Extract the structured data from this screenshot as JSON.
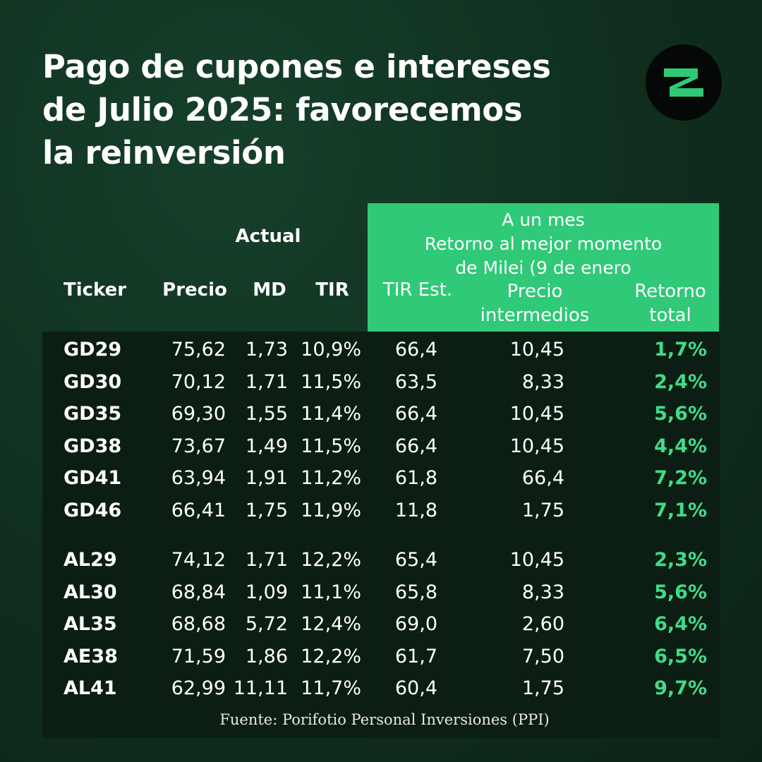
{
  "header": {
    "title_lines": [
      "Pago de cupones e intereses",
      "de Julio 2025: favorecemos",
      "la reinversión"
    ]
  },
  "table": {
    "group_left": "Actual",
    "group_right_lines": [
      "A un mes",
      "Retorno al mejor momento",
      "de Milei (9 de enero"
    ],
    "columns": [
      [
        "Ticker"
      ],
      [
        "Precio"
      ],
      [
        "MD"
      ],
      [
        "TIR"
      ],
      [
        "TIR Est."
      ],
      [
        "Precio",
        "intermedios"
      ],
      [
        "Retorno",
        "total"
      ]
    ],
    "sections": [
      {
        "rows": [
          [
            "GD29",
            "75,62",
            "1,73",
            "10,9%",
            "66,4",
            "10,45",
            "1,7%"
          ],
          [
            "GD30",
            "70,12",
            "1,71",
            "11,5%",
            "63,5",
            "8,33",
            "2,4%"
          ],
          [
            "GD35",
            "69,30",
            "1,55",
            "11,4%",
            "66,4",
            "10,45",
            "5,6%"
          ],
          [
            "GD38",
            "73,67",
            "1,49",
            "11,5%",
            "66,4",
            "10,45",
            "4,4%"
          ],
          [
            "GD41",
            "63,94",
            "1,91",
            "11,2%",
            "61,8",
            "66,4",
            "7,2%"
          ],
          [
            "GD46",
            "66,41",
            "1,75",
            "11,9%",
            "11,8",
            "1,75",
            "7,1%"
          ]
        ]
      },
      {
        "rows": [
          [
            "AL29",
            "74,12",
            "1,71",
            "12,2%",
            "65,4",
            "10,45",
            "2,3%"
          ],
          [
            "AL30",
            "68,84",
            "1,09",
            "11,1%",
            "65,8",
            "8,33",
            "5,6%"
          ],
          [
            "AL35",
            "68,68",
            "5,72",
            "12,4%",
            "69,0",
            "2,60",
            "6,4%"
          ],
          [
            "AE38",
            "71,59",
            "1,86",
            "12,2%",
            "61,7",
            "7,50",
            "6,5%"
          ],
          [
            "AL41",
            "62,99",
            "11,11",
            "11,7%",
            "60,4",
            "1,75",
            "9,7%"
          ]
        ]
      }
    ],
    "source": "Fuente: Porifotio Personal Inversiones (PPI)"
  }
}
